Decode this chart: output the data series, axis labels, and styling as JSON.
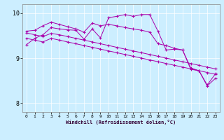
{
  "xlabel": "Windchill (Refroidissement éolien,°C)",
  "ylim": [
    7.8,
    10.2
  ],
  "xlim": [
    -0.5,
    23.5
  ],
  "yticks": [
    8,
    9,
    10
  ],
  "xticks": [
    0,
    1,
    2,
    3,
    4,
    5,
    6,
    7,
    8,
    9,
    10,
    11,
    12,
    13,
    14,
    15,
    16,
    17,
    18,
    19,
    20,
    21,
    22,
    23
  ],
  "bg_color": "#cceeff",
  "line_color": "#aa00aa",
  "s1": [
    9.3,
    9.44,
    9.52,
    9.68,
    9.65,
    9.63,
    9.62,
    9.42,
    9.65,
    9.45,
    9.9,
    9.93,
    9.97,
    9.93,
    9.97,
    9.97,
    9.6,
    9.18,
    9.2,
    9.18,
    8.75,
    8.72,
    8.38,
    8.55
  ],
  "s2": [
    9.6,
    9.62,
    9.72,
    9.8,
    9.75,
    9.7,
    9.65,
    9.58,
    9.78,
    9.72,
    9.75,
    9.72,
    9.68,
    9.65,
    9.62,
    9.58,
    9.32,
    9.28,
    9.22,
    9.18,
    8.78,
    8.72,
    8.4,
    8.65
  ],
  "s3": [
    9.56,
    9.52,
    9.48,
    9.55,
    9.52,
    9.48,
    9.44,
    9.4,
    9.36,
    9.32,
    9.28,
    9.24,
    9.2,
    9.16,
    9.12,
    9.08,
    9.04,
    9.0,
    8.96,
    8.92,
    8.88,
    8.84,
    8.8,
    8.76
  ],
  "s4": [
    9.44,
    9.4,
    9.36,
    9.44,
    9.4,
    9.36,
    9.32,
    9.28,
    9.24,
    9.2,
    9.16,
    9.12,
    9.08,
    9.04,
    9.0,
    8.96,
    8.92,
    8.88,
    8.84,
    8.8,
    8.76,
    8.72,
    8.68,
    8.64
  ]
}
